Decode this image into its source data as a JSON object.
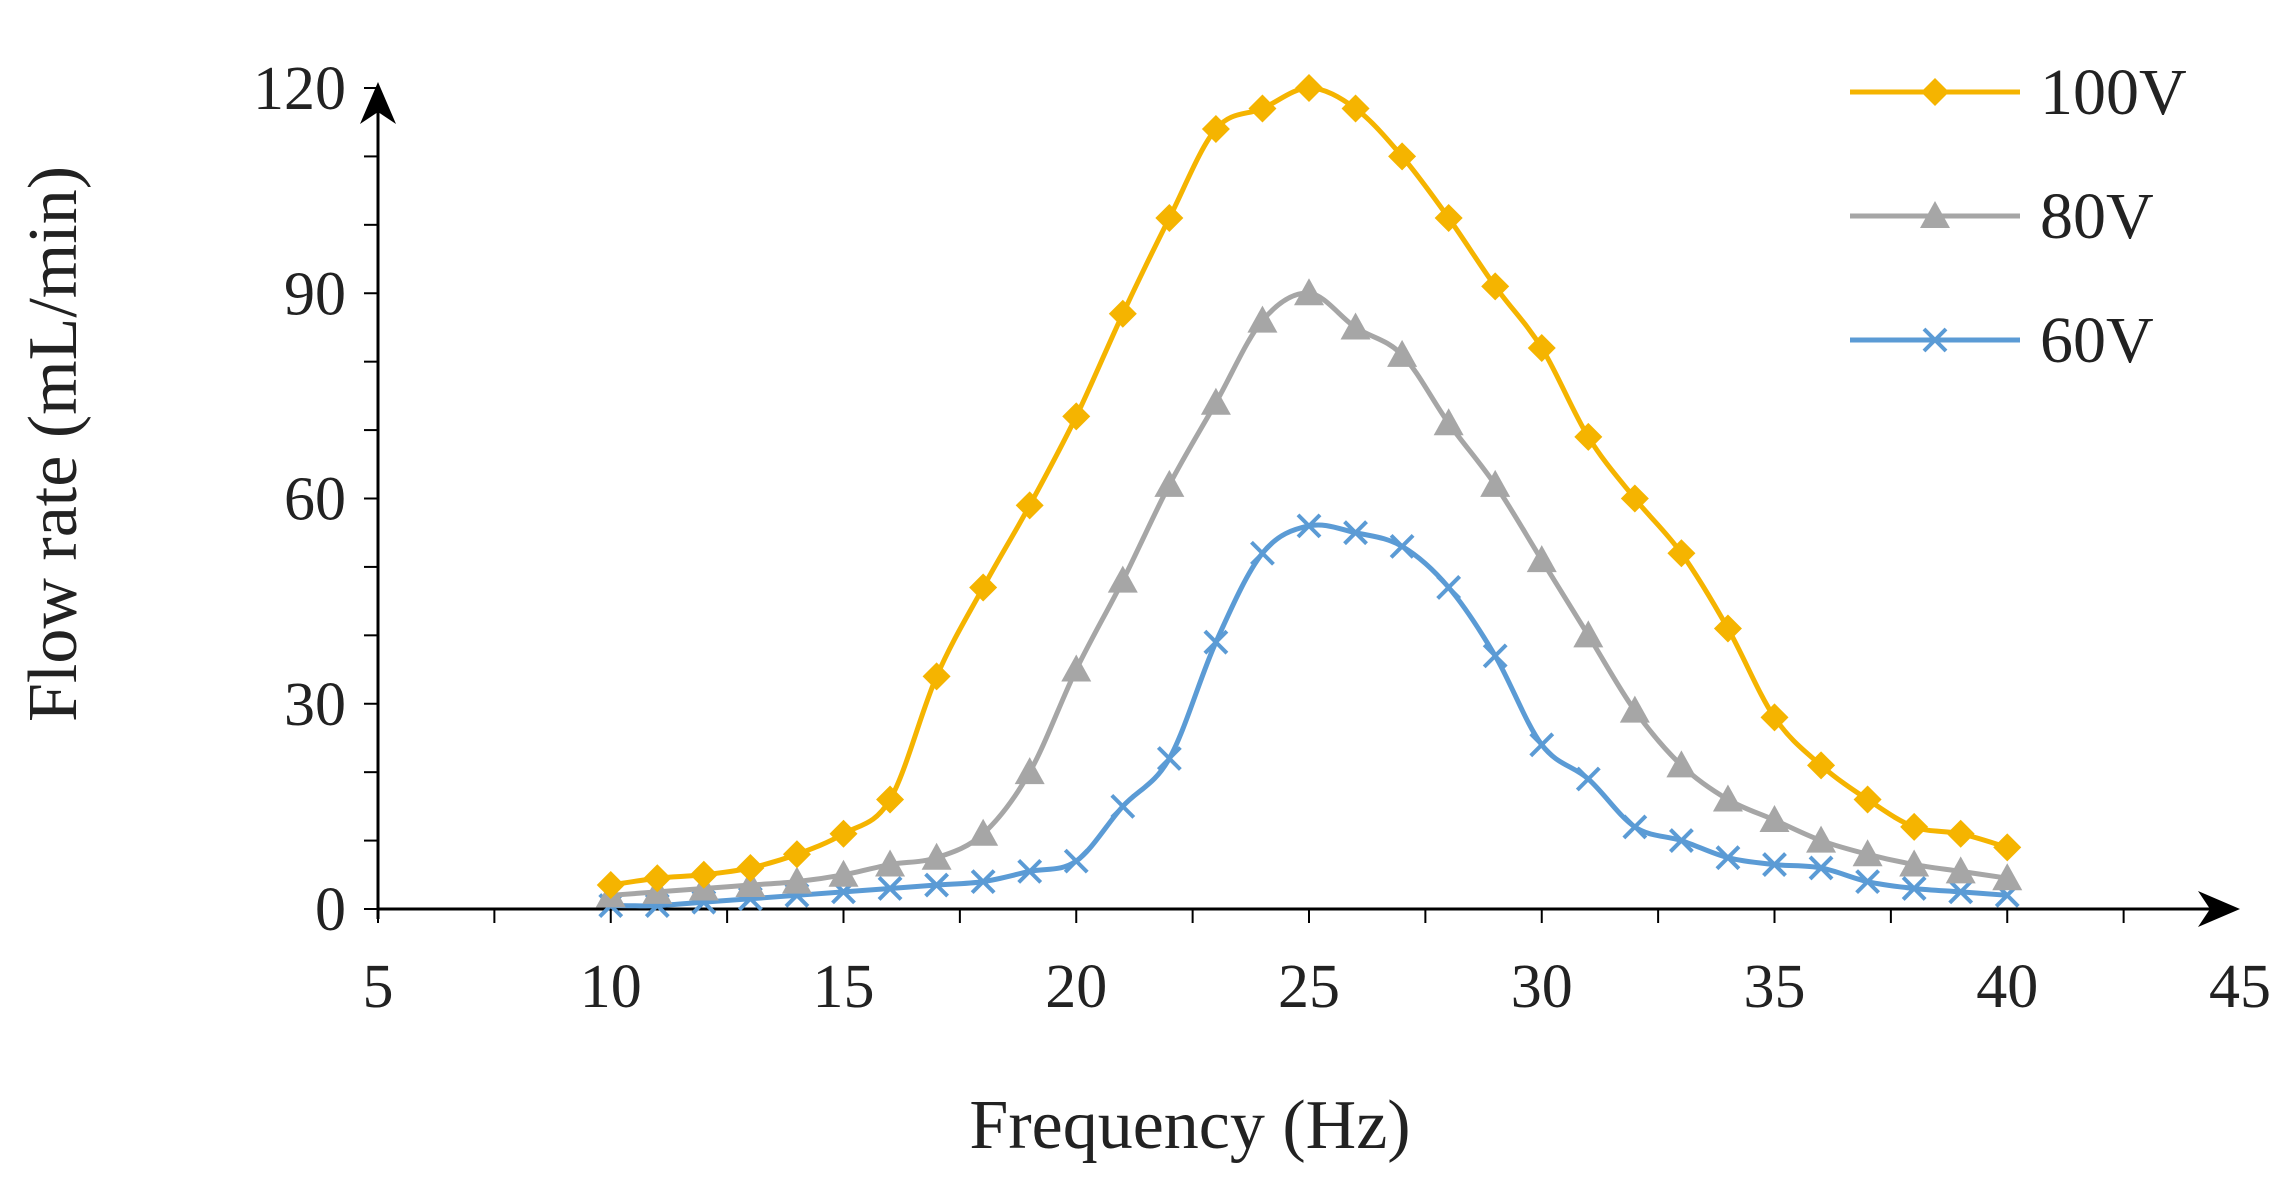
{
  "chart_data": {
    "type": "line",
    "title": "",
    "xlabel": "Frequency (Hz)",
    "ylabel": "Flow rate (mL/min)",
    "xlim": [
      5,
      45
    ],
    "ylim": [
      0,
      120
    ],
    "x_ticks": [
      5,
      10,
      15,
      20,
      25,
      30,
      35,
      40,
      45
    ],
    "y_ticks": [
      0,
      30,
      60,
      90,
      120
    ],
    "legend_position": "top-right",
    "x": [
      10,
      11,
      12,
      13,
      14,
      15,
      16,
      17,
      18,
      19,
      20,
      21,
      22,
      23,
      24,
      25,
      26,
      27,
      28,
      29,
      30,
      31,
      32,
      33,
      34,
      35,
      36,
      37,
      38,
      39,
      40
    ],
    "series": [
      {
        "name": "100V",
        "color": "#f5b400",
        "marker": "diamond",
        "values": [
          3.5,
          4.5,
          5,
          6,
          8,
          11,
          16,
          34,
          47,
          59,
          72,
          87,
          101,
          114,
          117,
          120,
          117,
          110,
          101,
          91,
          82,
          69,
          60,
          52,
          41,
          28,
          21,
          16,
          12,
          11,
          9
        ]
      },
      {
        "name": "80V",
        "color": "#a6a6a6",
        "marker": "triangle",
        "values": [
          2,
          2.5,
          3,
          3.5,
          4,
          5,
          6.5,
          7.5,
          11,
          20,
          35,
          48,
          62,
          74,
          86,
          90,
          85,
          81,
          71,
          62,
          51,
          40,
          29,
          21,
          16,
          13,
          10,
          8,
          6.5,
          5.5,
          4.5
        ]
      },
      {
        "name": "60V",
        "color": "#5b9bd5",
        "marker": "x",
        "values": [
          0.5,
          0.5,
          1,
          1.5,
          2,
          2.5,
          3,
          3.5,
          4,
          5.5,
          7,
          15,
          22,
          39,
          52,
          56,
          55,
          53,
          47,
          37,
          24,
          19,
          12,
          10,
          7.5,
          6.5,
          6,
          4,
          3,
          2.5,
          2
        ]
      }
    ]
  }
}
